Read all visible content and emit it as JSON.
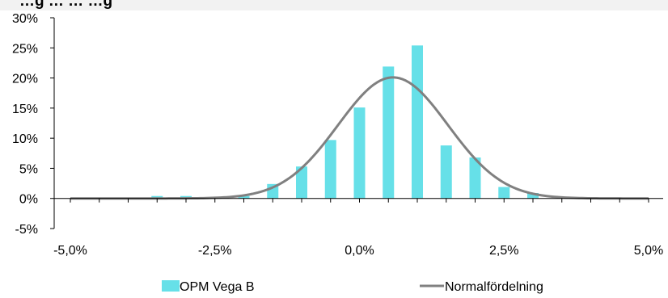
{
  "chart_data": {
    "type": "bar",
    "title": "…g … … …g",
    "xlabel": "",
    "ylabel": "",
    "xlim": [
      -5.0,
      5.0
    ],
    "ylim": [
      -5,
      30
    ],
    "x_ticks": [
      "-5,0%",
      "-2,5%",
      "0,0%",
      "2,5%",
      "5,0%"
    ],
    "x_tick_values": [
      -5.0,
      -2.5,
      0.0,
      2.5,
      5.0
    ],
    "y_ticks": [
      "-5%",
      "0%",
      "5%",
      "10%",
      "15%",
      "20%",
      "25%",
      "30%"
    ],
    "y_tick_values": [
      -5,
      0,
      5,
      10,
      15,
      20,
      25,
      30
    ],
    "grid": false,
    "legend_position": "bottom",
    "series": [
      {
        "name": "OPM Vega B",
        "type": "bar",
        "color": "#66e0e8",
        "x": [
          -3.5,
          -3.0,
          -2.5,
          -2.0,
          -1.5,
          -1.0,
          -0.5,
          0.0,
          0.5,
          1.0,
          1.5,
          2.0,
          2.5,
          3.0
        ],
        "values": [
          0.4,
          0.4,
          0.2,
          0.4,
          2.4,
          5.3,
          9.7,
          15.1,
          21.9,
          25.4,
          8.8,
          6.8,
          1.9,
          0.9
        ]
      },
      {
        "name": "Normalfördelning",
        "type": "line",
        "color": "#808080",
        "mean": 0.58,
        "std": 0.95,
        "peak": 20.1
      }
    ]
  }
}
